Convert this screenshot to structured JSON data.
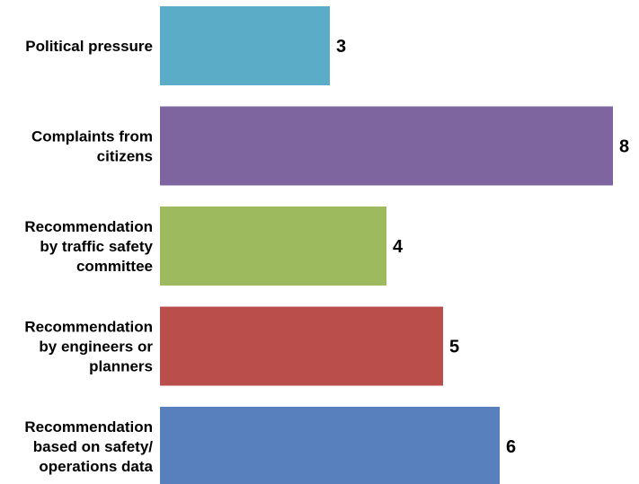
{
  "chart_data": {
    "type": "bar",
    "orientation": "horizontal",
    "title": "",
    "xlabel": "",
    "ylabel": "",
    "categories": [
      [
        "Political pressure"
      ],
      [
        "Complaints from",
        "citizens"
      ],
      [
        "Recommendation",
        "by traffic safety",
        "committee"
      ],
      [
        "Recommendation",
        "by engineers or",
        "planners"
      ],
      [
        "Recommendation",
        "based on safety/",
        "operations data"
      ]
    ],
    "values": [
      3,
      8,
      4,
      5,
      6
    ],
    "colors": [
      "#5BACC7",
      "#7E65A0",
      "#9DBB5E",
      "#BA4E4A",
      "#5880BD"
    ],
    "xlim": [
      0,
      8
    ],
    "grid": false,
    "legend": "none",
    "data_labels": true
  }
}
